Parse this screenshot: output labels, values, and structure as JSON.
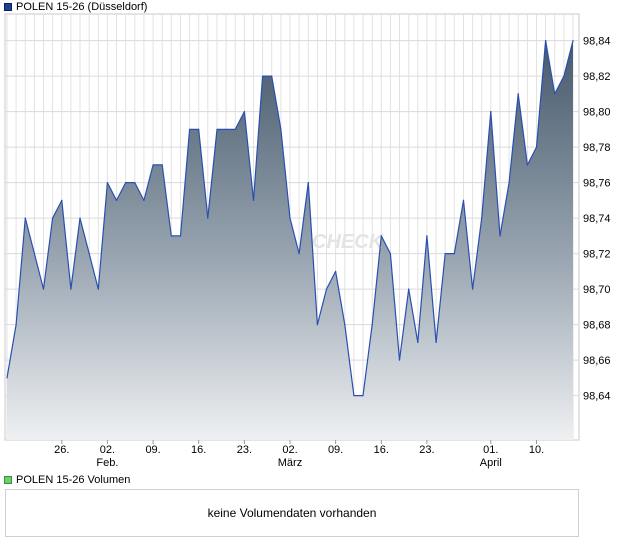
{
  "price_legend": {
    "label": "POLEN 15-26 (Düsseldorf)",
    "color": "#1f3f8f"
  },
  "volume_legend": {
    "label": "POLEN 15-26 Volumen",
    "color": "#6fcf6f"
  },
  "volume_message": "keine Volumendaten vorhanden",
  "watermark": "CHECK",
  "chart_data": {
    "type": "area",
    "title": "POLEN 15-26 (Düsseldorf)",
    "ylim": [
      98.615,
      98.855
    ],
    "y_ticks": [
      98.64,
      98.66,
      98.68,
      98.7,
      98.72,
      98.74,
      98.76,
      98.78,
      98.8,
      98.82,
      98.84
    ],
    "y_tick_labels": [
      "98,64",
      "98,66",
      "98,68",
      "98,70",
      "98,72",
      "98,74",
      "98,76",
      "98,78",
      "98,80",
      "98,82",
      "98,84"
    ],
    "x_ticks": [
      {
        "index": 6,
        "day": "26.",
        "month": ""
      },
      {
        "index": 11,
        "day": "02.",
        "month": "Feb."
      },
      {
        "index": 16,
        "day": "09.",
        "month": ""
      },
      {
        "index": 21,
        "day": "16.",
        "month": ""
      },
      {
        "index": 26,
        "day": "23.",
        "month": ""
      },
      {
        "index": 31,
        "day": "02.",
        "month": "März"
      },
      {
        "index": 36,
        "day": "09.",
        "month": ""
      },
      {
        "index": 41,
        "day": "16.",
        "month": ""
      },
      {
        "index": 46,
        "day": "23.",
        "month": ""
      },
      {
        "index": 53,
        "day": "01.",
        "month": "April"
      },
      {
        "index": 58,
        "day": "10.",
        "month": ""
      }
    ],
    "grid": true,
    "series": [
      {
        "name": "POLEN 15-26 (Düsseldorf)",
        "values": [
          98.65,
          98.68,
          98.74,
          98.72,
          98.7,
          98.74,
          98.75,
          98.7,
          98.74,
          98.72,
          98.7,
          98.76,
          98.75,
          98.76,
          98.76,
          98.75,
          98.77,
          98.77,
          98.73,
          98.73,
          98.79,
          98.79,
          98.74,
          98.79,
          98.79,
          98.79,
          98.8,
          98.75,
          98.82,
          98.82,
          98.79,
          98.74,
          98.72,
          98.76,
          98.68,
          98.7,
          98.71,
          98.68,
          98.64,
          98.64,
          98.68,
          98.73,
          98.72,
          98.66,
          98.7,
          98.67,
          98.73,
          98.67,
          98.72,
          98.72,
          98.75,
          98.7,
          98.74,
          98.8,
          98.73,
          98.76,
          98.81,
          98.77,
          98.78,
          98.84,
          98.81,
          98.82,
          98.84
        ]
      }
    ]
  }
}
